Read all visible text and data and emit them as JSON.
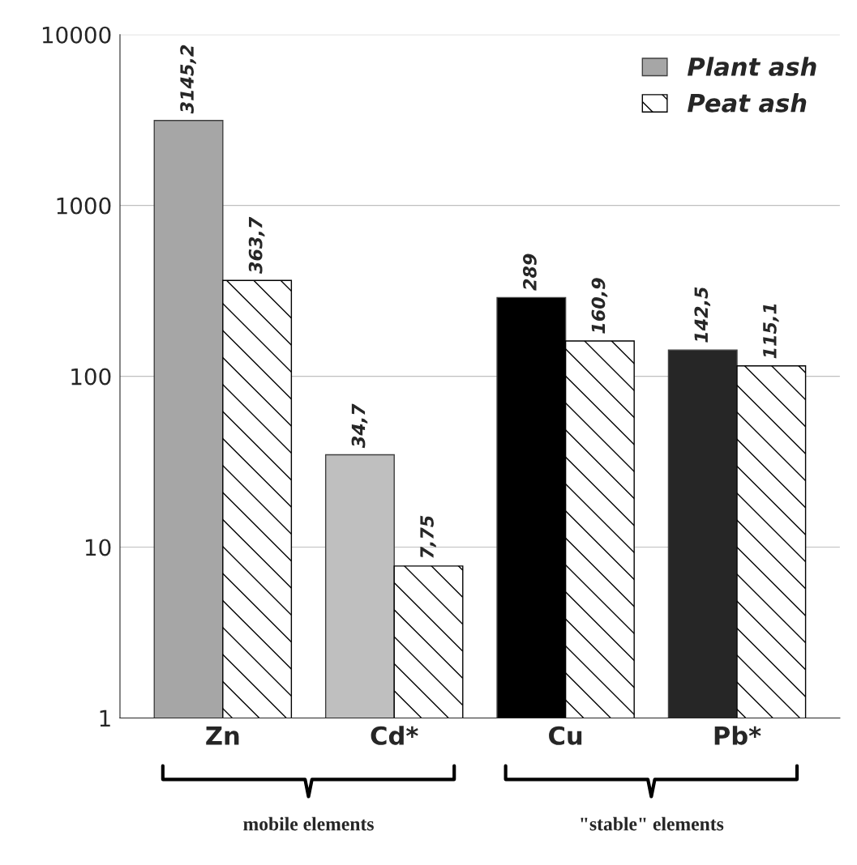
{
  "chart_data": {
    "type": "bar",
    "categories": [
      "Zn",
      "Cd*",
      "Cu",
      "Pb*"
    ],
    "series": [
      {
        "name": "Plant ash",
        "color": "#a6a6a6",
        "colors": [
          "#a6a6a6",
          "#bfbfbf",
          "#000000",
          "#262626"
        ],
        "values": [
          3145.2,
          34.7,
          289,
          142.5
        ],
        "value_labels": [
          "3145,2",
          "34,7",
          "289",
          "142,5"
        ]
      },
      {
        "name": "Peat ash",
        "color": "#000000",
        "values": [
          363.7,
          7.75,
          160.9,
          115.1
        ],
        "value_labels": [
          "363,7",
          "7,75",
          "160,9",
          "115,1"
        ]
      }
    ],
    "log": true,
    "ylim": [
      1,
      10000
    ],
    "yticks": [
      1,
      10,
      100,
      1000,
      10000
    ],
    "grid": "y",
    "legend": "top right",
    "annotations": [
      "mobile elements",
      "\"stable\" elements"
    ]
  }
}
